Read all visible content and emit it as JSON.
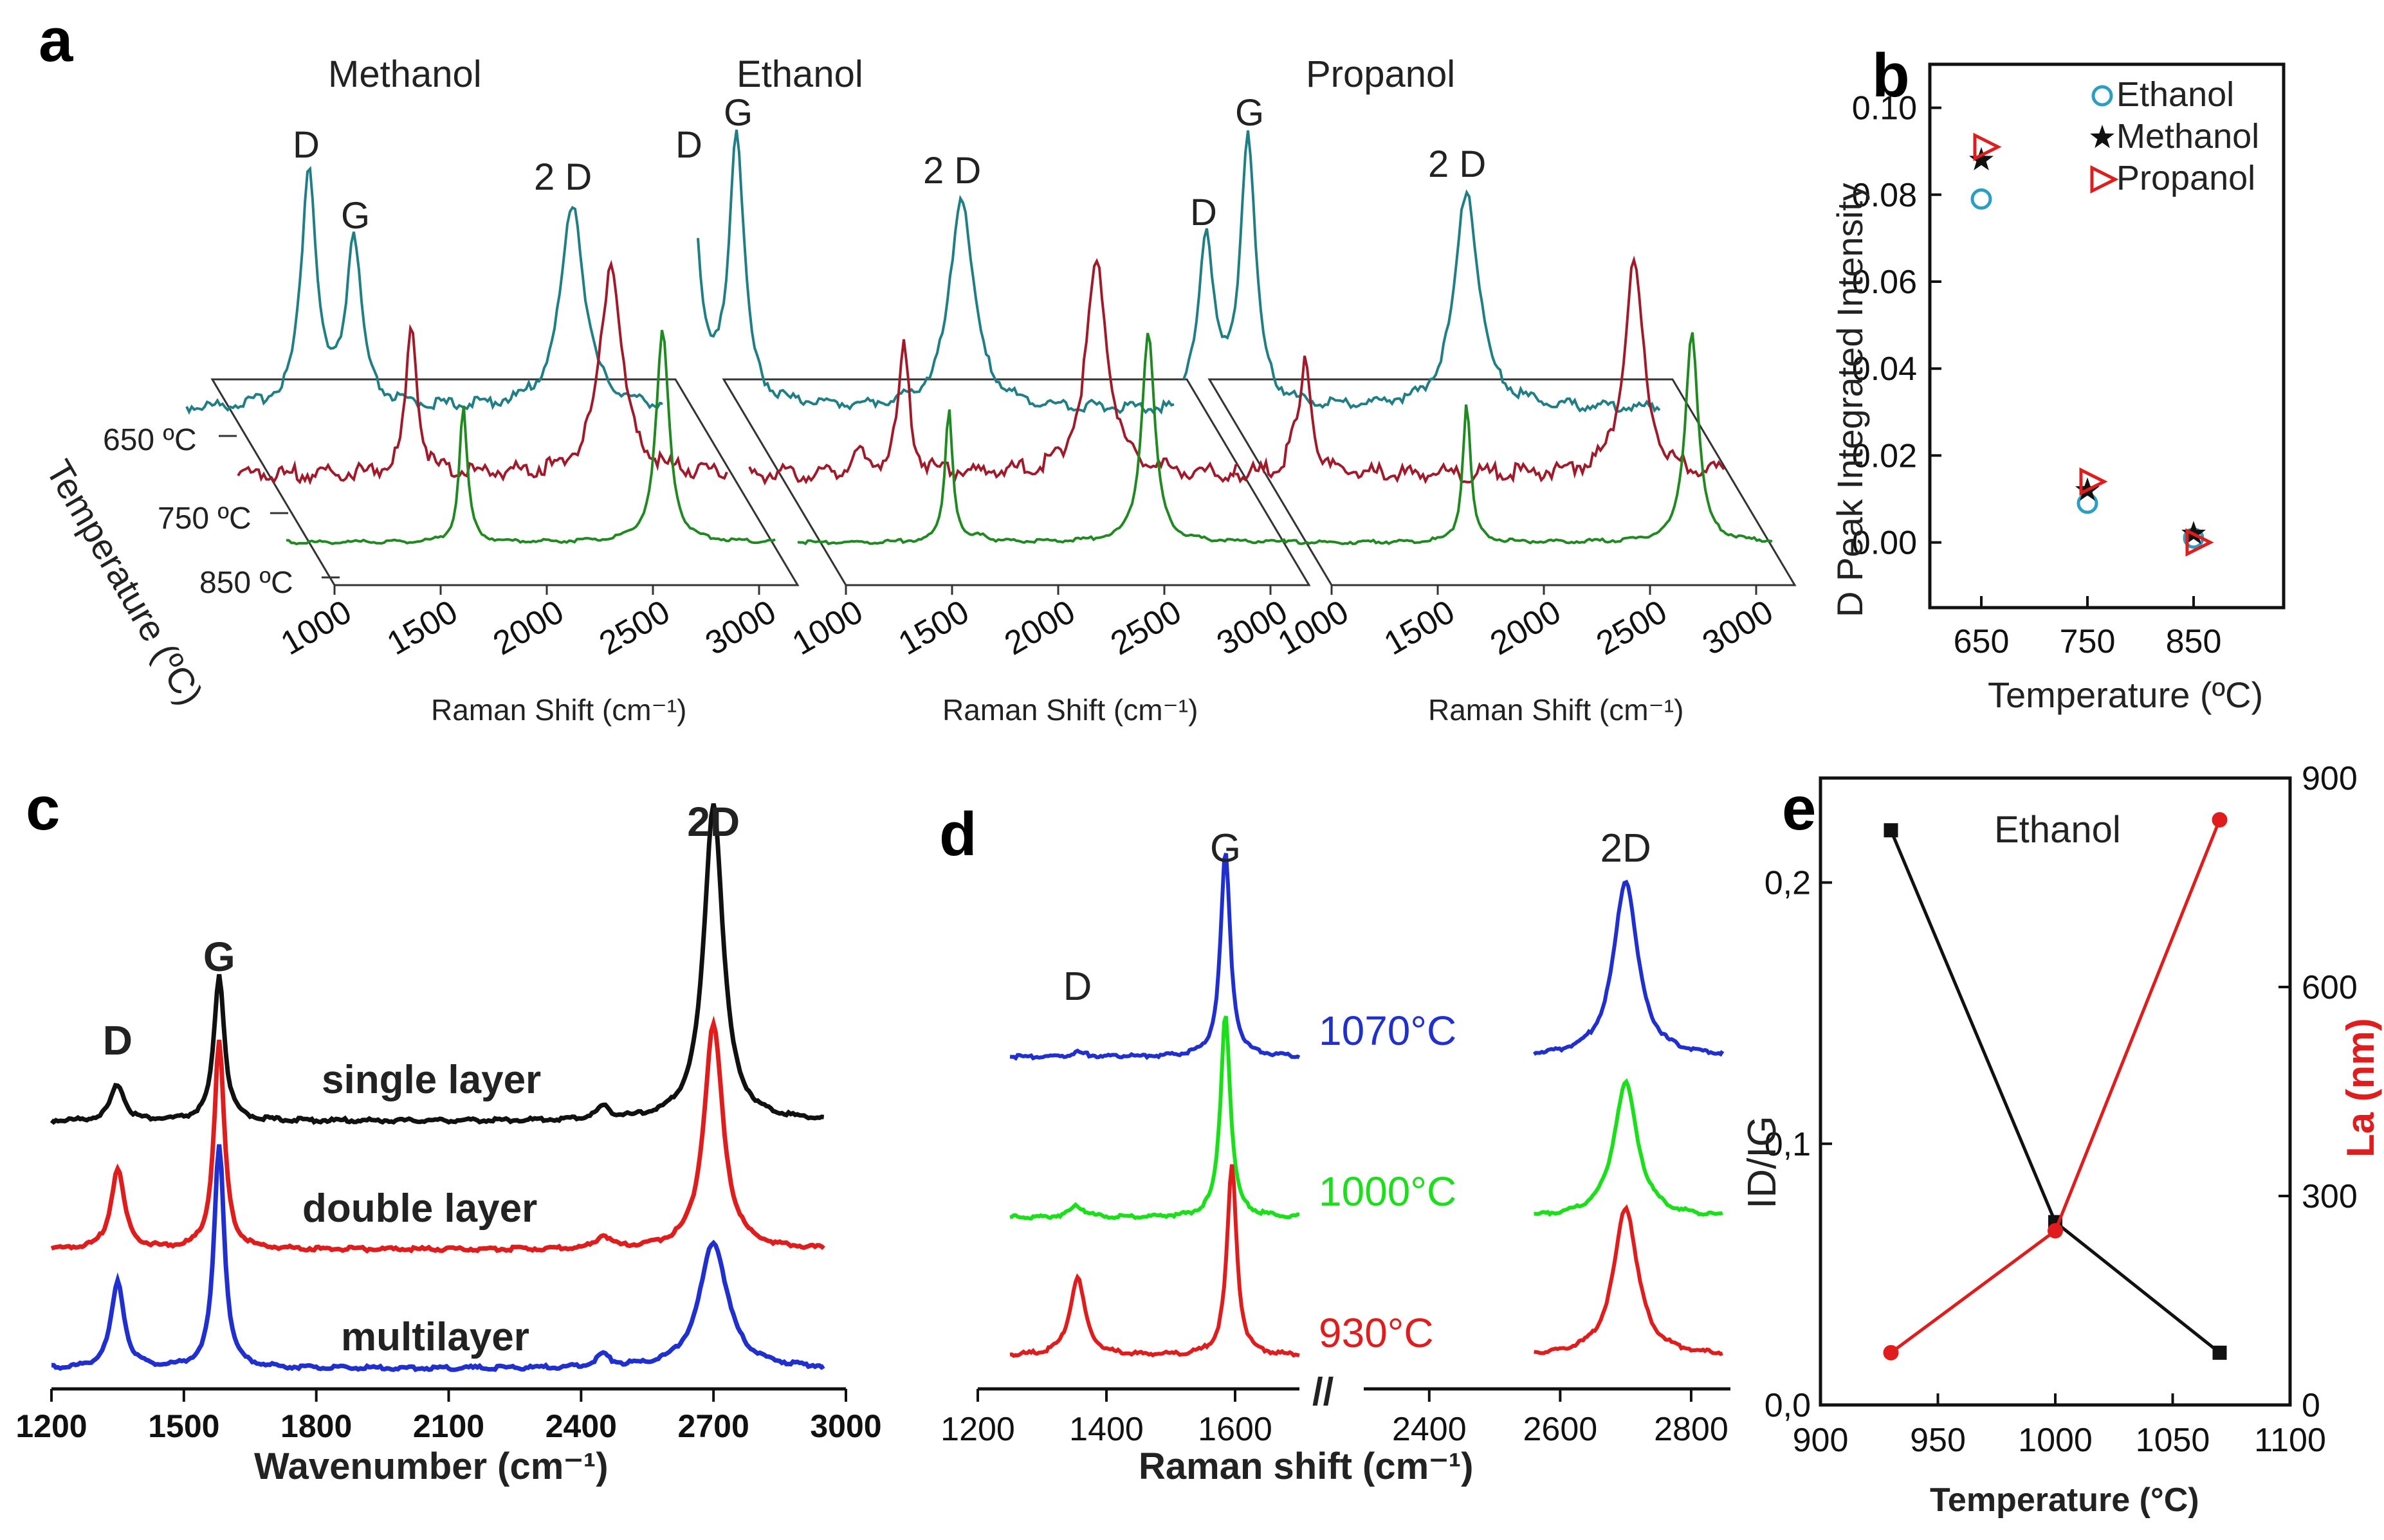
{
  "colors": {
    "teal": "#1f7f86",
    "darkred": "#a21a2a",
    "darkgreen": "#1f8a1f",
    "black": "#111111",
    "red": "#e01c1c",
    "blue": "#1f2fd0",
    "green": "#19e019",
    "cyan_marker": "#2a9fc4"
  },
  "chart_data": [
    {
      "panel": "a",
      "type": "line",
      "subplots": [
        {
          "title": "Methanol",
          "peaks": {
            "D": "D",
            "G": "G",
            "2D": "2 D"
          }
        },
        {
          "title": "Ethanol",
          "peaks": {
            "D": "D",
            "G": "G",
            "2D": "2 D"
          }
        },
        {
          "title": "Propanol",
          "peaks": {
            "D": "D",
            "G": "G",
            "2D": "2 D"
          }
        }
      ],
      "series": [
        {
          "name": "650 ºC",
          "color": "teal"
        },
        {
          "name": "750 ºC",
          "color": "darkred"
        },
        {
          "name": "850 ºC",
          "color": "darkgreen"
        }
      ],
      "xticks": [
        "1000",
        "1500",
        "2000",
        "2500",
        "3000"
      ],
      "xlabel": "Raman Shift (cm⁻¹)",
      "ylabel": "Temperature (ºC)",
      "xlim": [
        800,
        3000
      ]
    },
    {
      "panel": "b",
      "type": "scatter",
      "xlabel": "Temperature (ºC)",
      "ylabel": "D Peak Integrated Intensity",
      "xticks": [
        "650",
        "750",
        "850"
      ],
      "yticks": [
        "0.00",
        "0.02",
        "0.04",
        "0.06",
        "0.08",
        "0.10"
      ],
      "ylim": [
        -0.015,
        0.11
      ],
      "x": [
        650,
        750,
        850
      ],
      "series": [
        {
          "name": "Ethanol",
          "marker": "circle",
          "color": "cyan_marker",
          "values": [
            0.079,
            0.009,
            0.001
          ]
        },
        {
          "name": "Methanol",
          "marker": "star",
          "color": "black",
          "values": [
            0.088,
            0.012,
            0.002
          ]
        },
        {
          "name": "Propanol",
          "marker": "triangle",
          "color": "red",
          "values": [
            0.091,
            0.014,
            0.0
          ]
        }
      ]
    },
    {
      "panel": "c",
      "type": "line",
      "xlabel": "Wavenumber (cm⁻¹)",
      "xticks": [
        "1200",
        "1500",
        "1800",
        "2100",
        "2400",
        "2700",
        "3000"
      ],
      "xlim": [
        1200,
        3000
      ],
      "peak_labels": [
        "D",
        "G",
        "2D"
      ],
      "series": [
        {
          "name": "single layer",
          "color": "black",
          "peaks": {
            "D": 0.15,
            "G": 0.6,
            "2D": 1.3
          }
        },
        {
          "name": "double layer",
          "color": "red",
          "peaks": {
            "D": 0.33,
            "G": 0.85,
            "2D": 0.92
          }
        },
        {
          "name": "multilayer",
          "color": "blue",
          "peaks": {
            "D": 0.35,
            "G": 0.92,
            "2D": 0.52
          }
        }
      ]
    },
    {
      "panel": "d",
      "type": "line",
      "xlabel": "Raman shift (cm⁻¹)",
      "xticks": [
        "1200",
        "1400",
        "1600",
        "2400",
        "2600",
        "2800"
      ],
      "break_symbol": "//",
      "peak_labels": [
        "D",
        "G",
        "2D"
      ],
      "series": [
        {
          "name": "1070°C",
          "color": "blue",
          "peaks": {
            "D": 0.03,
            "G": 1.45,
            "2D": 1.25
          }
        },
        {
          "name": "1000°C",
          "color": "green",
          "peaks": {
            "D": 0.08,
            "G": 1.45,
            "2D": 0.95
          }
        },
        {
          "name": "930°C",
          "color": "red",
          "peaks": {
            "D": 0.55,
            "G": 1.35,
            "2D": 1.05
          }
        }
      ]
    },
    {
      "panel": "e",
      "type": "line",
      "annotation": "Ethanol",
      "xlabel": "Temperature (°C)",
      "ylabel_left": "ID/IG",
      "ylabel_right": "La (nm)",
      "xticks": [
        "900",
        "950",
        "1000",
        "1050",
        "1100"
      ],
      "yticks_left": [
        "0,0",
        "0,1",
        "0,2"
      ],
      "yticks_right": [
        "0",
        "300",
        "600",
        "900"
      ],
      "xlim": [
        900,
        1100
      ],
      "ylim_left": [
        0,
        0.24
      ],
      "ylim_right": [
        0,
        900
      ],
      "x": [
        930,
        1000,
        1070
      ],
      "series": [
        {
          "name": "ID/IG",
          "axis": "left",
          "color": "black",
          "values": [
            0.22,
            0.07,
            0.02
          ]
        },
        {
          "name": "La",
          "axis": "right",
          "color": "red",
          "values": [
            75,
            250,
            840
          ]
        }
      ]
    }
  ],
  "panel_letters": [
    "a",
    "b",
    "c",
    "d",
    "e"
  ]
}
